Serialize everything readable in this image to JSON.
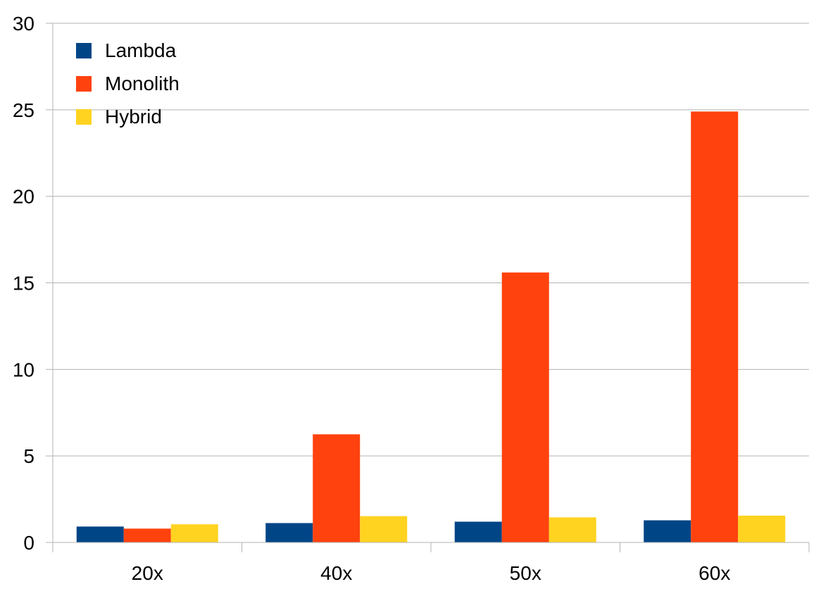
{
  "chart_data": {
    "type": "bar",
    "categories": [
      "20x",
      "40x",
      "50x",
      "60x"
    ],
    "series": [
      {
        "name": "Lambda",
        "color": "#004586",
        "values": [
          0.92,
          1.12,
          1.2,
          1.28
        ]
      },
      {
        "name": "Monolith",
        "color": "#ff420e",
        "values": [
          0.8,
          6.25,
          15.6,
          24.9
        ]
      },
      {
        "name": "Hybrid",
        "color": "#ffd320",
        "values": [
          1.05,
          1.52,
          1.45,
          1.55
        ]
      }
    ],
    "title": "",
    "xlabel": "",
    "ylabel": "",
    "ylim": [
      0,
      30
    ],
    "yticks": [
      "0",
      "5",
      "10",
      "15",
      "20",
      "25",
      "30"
    ],
    "grid": "horizontal",
    "legend_position": "top-left",
    "colors": {
      "grid": "#b3b3b3",
      "axis": "#b3b3b3",
      "background": "#ffffff"
    }
  }
}
